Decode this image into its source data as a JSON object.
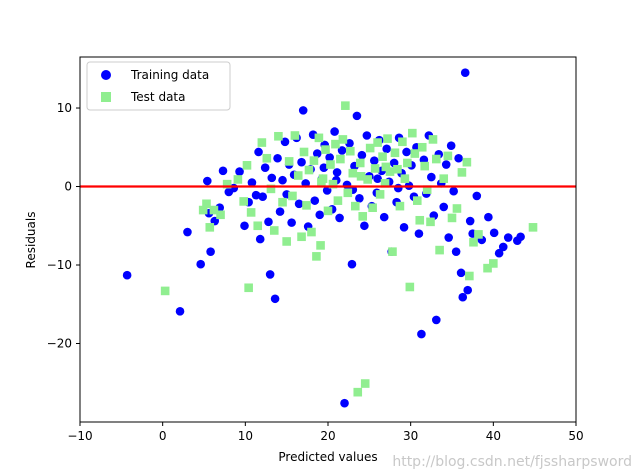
{
  "chart_data": {
    "type": "scatter",
    "title": "",
    "xlabel": "Predicted values",
    "ylabel": "Residuals",
    "xlim": [
      -10,
      50
    ],
    "ylim": [
      -30,
      16.5
    ],
    "xticks": [
      -10,
      0,
      10,
      20,
      30,
      40,
      50
    ],
    "yticks": [
      -20,
      -10,
      0,
      10
    ],
    "grid": false,
    "legend_position": "top-left",
    "hline": {
      "y": 0,
      "color": "#ff0000"
    },
    "series": [
      {
        "name": "Training data",
        "marker": "circle",
        "color": "#0000ff",
        "points": [
          [
            -4.3,
            -11.3
          ],
          [
            2.1,
            -15.9
          ],
          [
            3.0,
            -5.8
          ],
          [
            4.6,
            -9.9
          ],
          [
            5.4,
            0.7
          ],
          [
            5.6,
            -3.4
          ],
          [
            5.8,
            -8.3
          ],
          [
            6.3,
            -4.4
          ],
          [
            6.9,
            -2.7
          ],
          [
            7.3,
            2.0
          ],
          [
            8.0,
            -0.7
          ],
          [
            8.6,
            -0.2
          ],
          [
            9.3,
            1.9
          ],
          [
            9.9,
            -5.0
          ],
          [
            10.4,
            -2.0
          ],
          [
            10.8,
            0.5
          ],
          [
            11.3,
            -1.1
          ],
          [
            11.6,
            4.4
          ],
          [
            11.8,
            -6.7
          ],
          [
            12.1,
            -1.3
          ],
          [
            12.4,
            2.4
          ],
          [
            12.8,
            -4.5
          ],
          [
            13.0,
            -11.2
          ],
          [
            13.2,
            1.1
          ],
          [
            13.6,
            -14.3
          ],
          [
            13.9,
            3.6
          ],
          [
            14.2,
            -3.2
          ],
          [
            14.5,
            0.8
          ],
          [
            14.8,
            5.7
          ],
          [
            15.0,
            -1.0
          ],
          [
            15.3,
            2.8
          ],
          [
            15.6,
            -4.6
          ],
          [
            15.9,
            1.5
          ],
          [
            16.2,
            6.2
          ],
          [
            16.5,
            -2.2
          ],
          [
            16.8,
            3.1
          ],
          [
            17.0,
            9.7
          ],
          [
            17.3,
            0.4
          ],
          [
            17.6,
            -5.1
          ],
          [
            17.9,
            2.2
          ],
          [
            18.2,
            6.6
          ],
          [
            18.4,
            -1.8
          ],
          [
            18.7,
            4.2
          ],
          [
            19.0,
            -3.6
          ],
          [
            19.3,
            1.0
          ],
          [
            19.6,
            5.3
          ],
          [
            19.9,
            -0.5
          ],
          [
            20.2,
            3.7
          ],
          [
            20.5,
            -2.9
          ],
          [
            20.8,
            7.0
          ],
          [
            21.1,
            1.8
          ],
          [
            21.4,
            -4.0
          ],
          [
            21.7,
            4.6
          ],
          [
            22.0,
            -27.6
          ],
          [
            22.3,
            0.2
          ],
          [
            22.6,
            5.5
          ],
          [
            22.9,
            -9.9
          ],
          [
            23.2,
            2.6
          ],
          [
            23.5,
            9.0
          ],
          [
            23.8,
            -1.5
          ],
          [
            24.1,
            4.0
          ],
          [
            24.4,
            -5.0
          ],
          [
            24.7,
            6.5
          ],
          [
            25.0,
            1.3
          ],
          [
            25.3,
            -2.5
          ],
          [
            25.6,
            3.3
          ],
          [
            25.9,
            -0.8
          ],
          [
            26.2,
            5.9
          ],
          [
            26.5,
            2.0
          ],
          [
            26.8,
            -3.9
          ],
          [
            27.1,
            4.8
          ],
          [
            27.4,
            0.6
          ],
          [
            27.7,
            -8.3
          ],
          [
            28.0,
            3.0
          ],
          [
            28.3,
            -2.0
          ],
          [
            28.6,
            6.2
          ],
          [
            28.9,
            1.7
          ],
          [
            29.2,
            -5.2
          ],
          [
            29.5,
            4.4
          ],
          [
            29.8,
            0.1
          ],
          [
            30.1,
            2.7
          ],
          [
            30.4,
            -1.3
          ],
          [
            30.7,
            5.0
          ],
          [
            31.0,
            -6.0
          ],
          [
            31.3,
            -18.8
          ],
          [
            31.6,
            3.4
          ],
          [
            31.9,
            -0.9
          ],
          [
            32.2,
            6.5
          ],
          [
            32.5,
            1.2
          ],
          [
            32.8,
            -3.7
          ],
          [
            33.1,
            -17.0
          ],
          [
            33.4,
            4.1
          ],
          [
            33.7,
            0.4
          ],
          [
            34.0,
            -2.6
          ],
          [
            34.3,
            2.8
          ],
          [
            34.6,
            -6.5
          ],
          [
            34.9,
            5.2
          ],
          [
            35.2,
            -0.6
          ],
          [
            35.5,
            -8.3
          ],
          [
            35.8,
            3.6
          ],
          [
            36.1,
            -11.0
          ],
          [
            36.3,
            -14.1
          ],
          [
            36.6,
            14.5
          ],
          [
            36.9,
            -13.2
          ],
          [
            37.2,
            -4.4
          ],
          [
            37.5,
            -6.0
          ],
          [
            38.0,
            -1.2
          ],
          [
            38.6,
            -6.8
          ],
          [
            39.4,
            -3.9
          ],
          [
            40.1,
            -5.9
          ],
          [
            40.7,
            -8.5
          ],
          [
            41.2,
            -7.7
          ],
          [
            41.8,
            -6.5
          ],
          [
            42.9,
            -6.9
          ],
          [
            43.3,
            -6.4
          ],
          [
            21.0,
            0.8
          ],
          [
            19.5,
            2.4
          ],
          [
            23.0,
            -0.4
          ],
          [
            26.0,
            1.0
          ],
          [
            28.5,
            -0.2
          ]
        ]
      },
      {
        "name": "Test data",
        "marker": "square",
        "color": "#90ee90",
        "points": [
          [
            0.3,
            -13.3
          ],
          [
            4.9,
            -3.0
          ],
          [
            5.3,
            -2.2
          ],
          [
            5.7,
            -5.2
          ],
          [
            6.2,
            -3.0
          ],
          [
            7.0,
            -3.6
          ],
          [
            7.8,
            0.3
          ],
          [
            9.1,
            0.9
          ],
          [
            9.8,
            -1.9
          ],
          [
            10.2,
            2.7
          ],
          [
            10.4,
            -12.9
          ],
          [
            10.7,
            -3.3
          ],
          [
            11.5,
            -5.0
          ],
          [
            12.0,
            5.6
          ],
          [
            12.6,
            3.6
          ],
          [
            13.1,
            -0.3
          ],
          [
            13.5,
            -5.6
          ],
          [
            14.0,
            6.4
          ],
          [
            14.5,
            -2.0
          ],
          [
            15.0,
            -7.0
          ],
          [
            15.3,
            3.2
          ],
          [
            15.7,
            -1.2
          ],
          [
            16.0,
            6.5
          ],
          [
            16.4,
            1.4
          ],
          [
            16.8,
            -6.4
          ],
          [
            17.1,
            4.4
          ],
          [
            17.4,
            -2.4
          ],
          [
            17.7,
            2.1
          ],
          [
            18.0,
            -5.8
          ],
          [
            18.3,
            3.3
          ],
          [
            18.6,
            -8.9
          ],
          [
            18.9,
            6.2
          ],
          [
            19.1,
            -7.5
          ],
          [
            19.4,
            1.0
          ],
          [
            19.7,
            4.7
          ],
          [
            20.0,
            -3.1
          ],
          [
            20.3,
            2.8
          ],
          [
            20.6,
            0.3
          ],
          [
            20.9,
            5.4
          ],
          [
            21.2,
            -1.8
          ],
          [
            21.5,
            3.5
          ],
          [
            21.8,
            6.0
          ],
          [
            22.1,
            10.3
          ],
          [
            22.4,
            -0.8
          ],
          [
            22.7,
            4.5
          ],
          [
            23.0,
            1.7
          ],
          [
            23.3,
            -2.5
          ],
          [
            23.6,
            -26.2
          ],
          [
            23.9,
            3.0
          ],
          [
            24.2,
            -3.8
          ],
          [
            24.5,
            -25.1
          ],
          [
            24.8,
            0.9
          ],
          [
            25.1,
            4.9
          ],
          [
            25.4,
            -2.7
          ],
          [
            25.7,
            2.3
          ],
          [
            26.0,
            5.6
          ],
          [
            26.3,
            -1.0
          ],
          [
            26.6,
            3.8
          ],
          [
            26.9,
            0.4
          ],
          [
            27.2,
            6.1
          ],
          [
            27.5,
            1.9
          ],
          [
            27.8,
            -8.3
          ],
          [
            28.1,
            4.3
          ],
          [
            28.4,
            2.2
          ],
          [
            28.7,
            -2.5
          ],
          [
            29.0,
            5.7
          ],
          [
            29.3,
            1.0
          ],
          [
            29.6,
            3.0
          ],
          [
            29.9,
            -12.8
          ],
          [
            30.2,
            6.8
          ],
          [
            30.5,
            4.2
          ],
          [
            30.8,
            -1.8
          ],
          [
            31.1,
            -4.3
          ],
          [
            31.4,
            5.0
          ],
          [
            31.7,
            2.6
          ],
          [
            32.0,
            -0.4
          ],
          [
            32.4,
            -4.5
          ],
          [
            32.7,
            6.0
          ],
          [
            33.1,
            3.5
          ],
          [
            33.5,
            -8.1
          ],
          [
            34.0,
            1.0
          ],
          [
            34.5,
            3.9
          ],
          [
            35.0,
            -4.0
          ],
          [
            35.6,
            -2.8
          ],
          [
            36.2,
            1.8
          ],
          [
            36.8,
            3.1
          ],
          [
            37.1,
            -11.4
          ],
          [
            37.6,
            -7.1
          ],
          [
            38.2,
            -6.1
          ],
          [
            39.3,
            -10.4
          ],
          [
            40.0,
            -9.8
          ],
          [
            44.8,
            -5.2
          ],
          [
            19.2,
            0.6
          ],
          [
            24.0,
            1.3
          ],
          [
            27.0,
            2.5
          ]
        ]
      }
    ]
  },
  "watermark": "http://blog.csdn.net/fjssharpsword"
}
